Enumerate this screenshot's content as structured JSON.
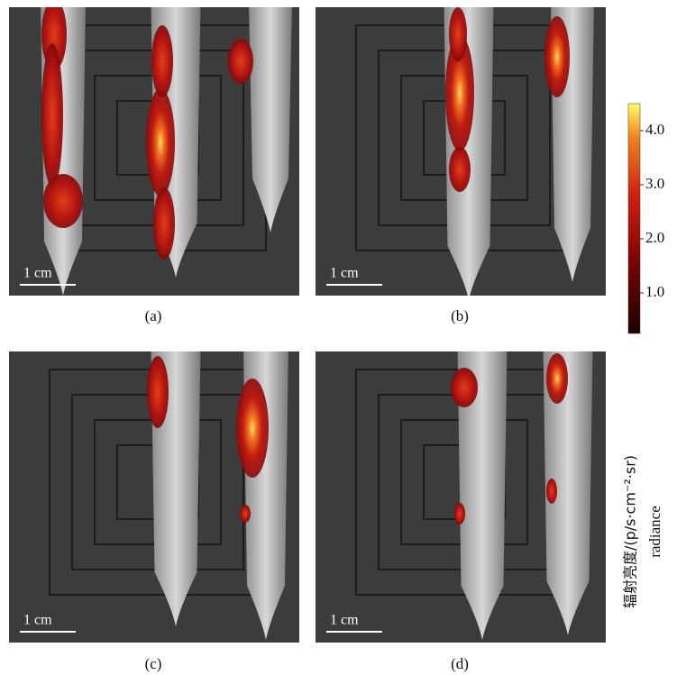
{
  "panels": [
    {
      "label": "(a)",
      "scale": "1 cm"
    },
    {
      "label": "(b)",
      "scale": "1 cm"
    },
    {
      "label": "(c)",
      "scale": "1 cm"
    },
    {
      "label": "(d)",
      "scale": "1 cm"
    }
  ],
  "colorbar": {
    "label": "辐射亮度/(p/s·cm⁻²·sr)",
    "sublabel": "radiance",
    "clim": [
      0.25,
      4.5
    ],
    "ticks": [
      {
        "value": 1,
        "label": "1.0"
      },
      {
        "value": 2,
        "label": "2.0"
      },
      {
        "value": 3,
        "label": "3.0"
      },
      {
        "value": 4,
        "label": "4.0"
      }
    ]
  }
}
